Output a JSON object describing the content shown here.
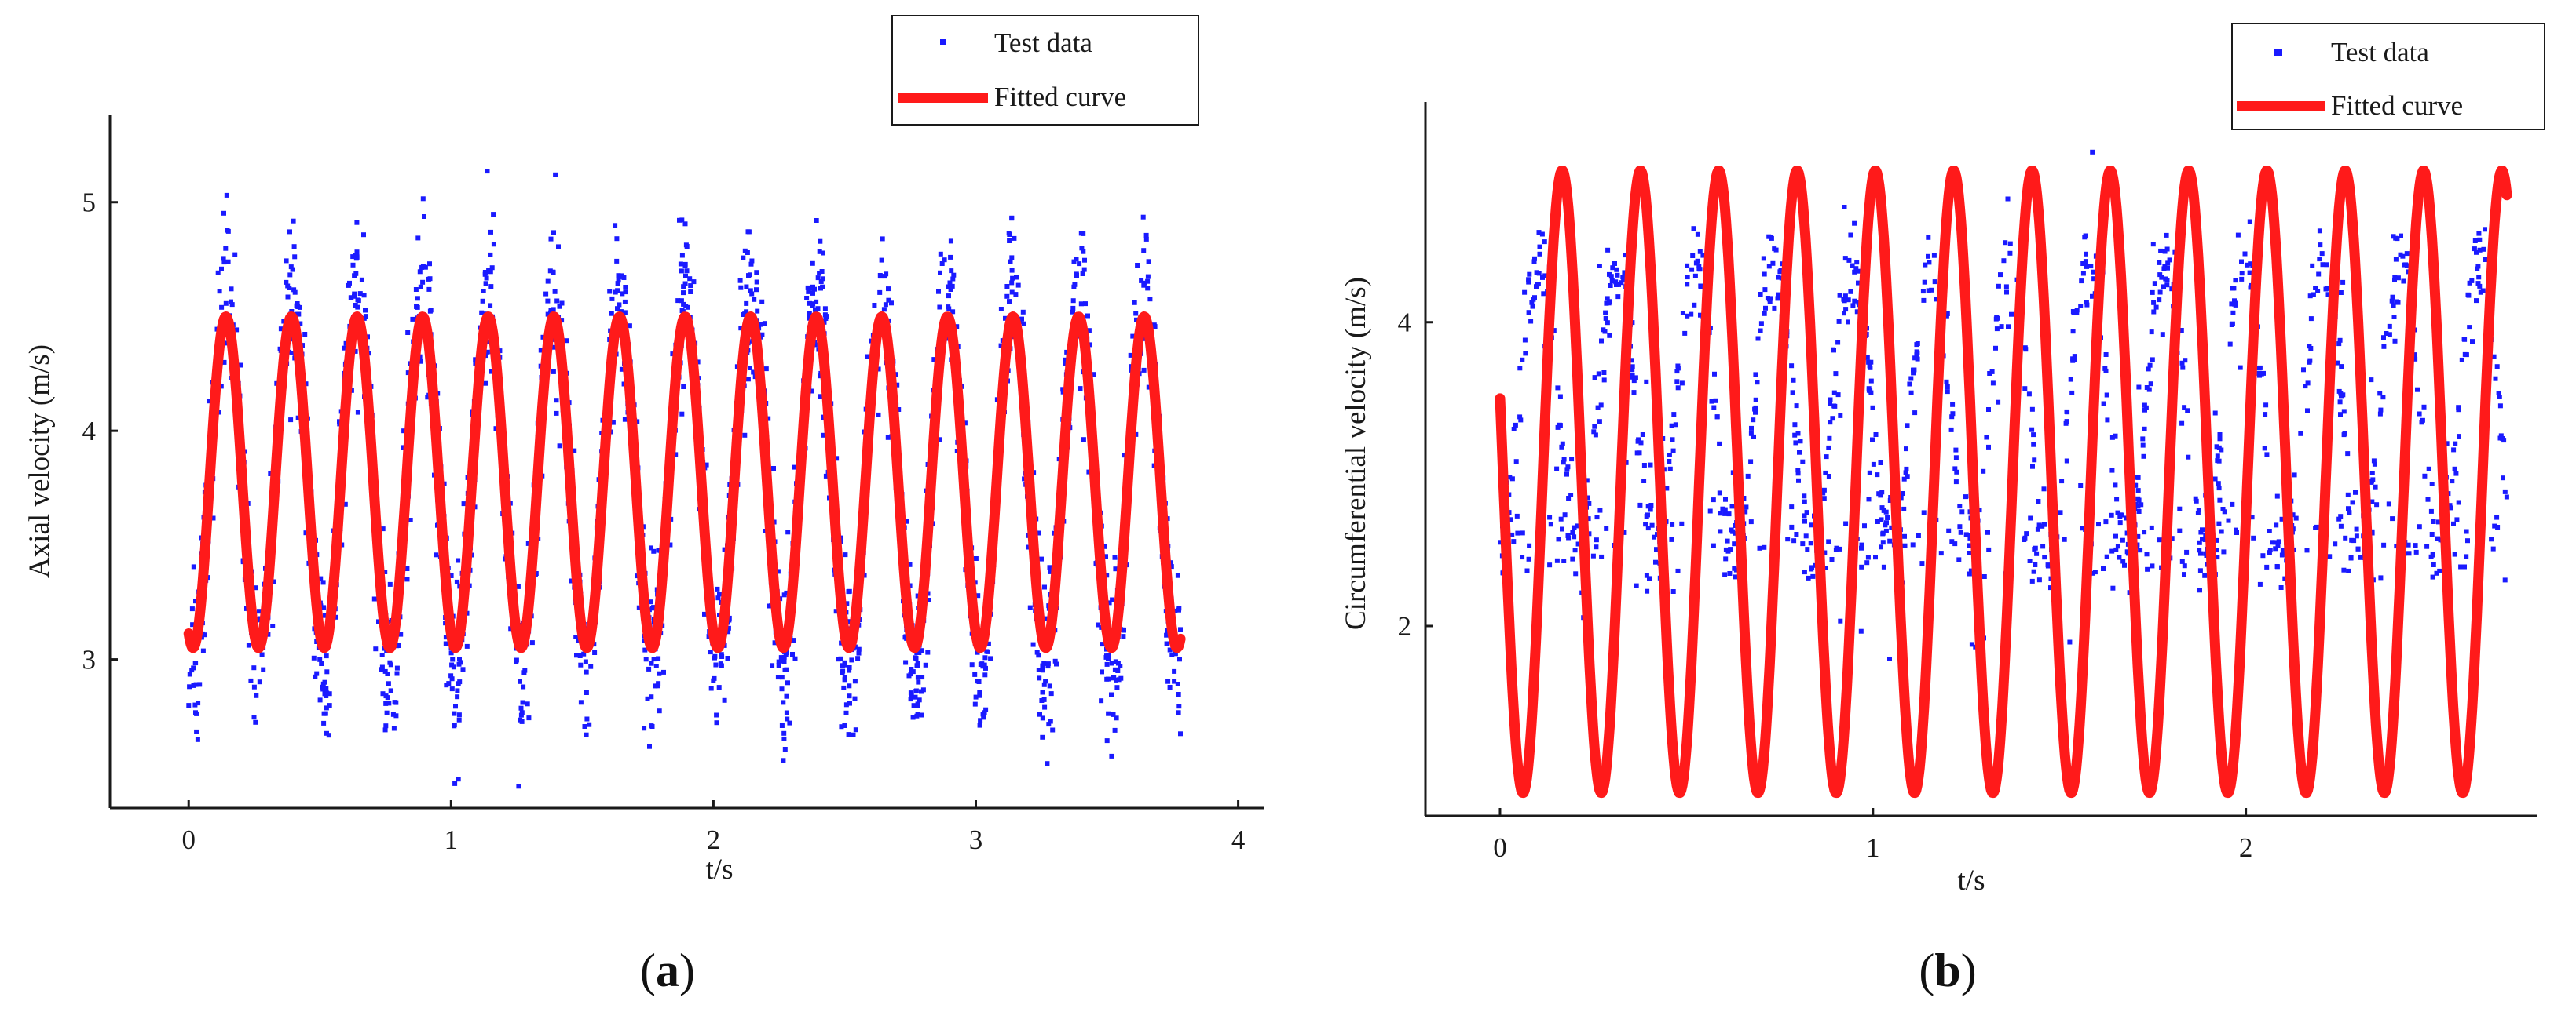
{
  "colors": {
    "scatter": "#1a1aff",
    "fit": "#ff1a1a",
    "axis": "#1a1a1a"
  },
  "chart_data": [
    {
      "type": "scatter",
      "panel_label": "(a)",
      "panel_letter": "a",
      "xlabel": "t/s",
      "ylabel": "Axial velocity (m/s)",
      "xlim": [
        -0.3,
        4.1
      ],
      "ylim": [
        2.35,
        5.38
      ],
      "xticks": [
        0,
        1,
        2,
        3,
        4
      ],
      "yticks": [
        3,
        4,
        5
      ],
      "series": [
        {
          "name": "Test data",
          "kind": "scatter",
          "t_range": [
            0,
            3.78
          ],
          "n_points": 2400,
          "period": 0.25,
          "mean": 3.78,
          "amplitude": 0.82,
          "noise": 0.38,
          "phase": 2.72
        },
        {
          "name": "Fitted curve",
          "kind": "line",
          "t_range": [
            0,
            3.78
          ],
          "period": 0.25,
          "mean": 3.775,
          "amplitude": 0.725,
          "phase": 2.72
        }
      ],
      "legend": [
        "Test data",
        "Fitted curve"
      ],
      "legend_location": "top-right"
    },
    {
      "type": "scatter",
      "panel_label": "(b)",
      "panel_letter": "b",
      "xlabel": "t/s",
      "ylabel": "Circumferential velocity (m/s)",
      "xlim": [
        -0.2,
        2.78
      ],
      "ylim": [
        0.75,
        5.45
      ],
      "xticks": [
        0,
        1,
        2
      ],
      "yticks": [
        2,
        4
      ],
      "series": [
        {
          "name": "Test data",
          "kind": "scatter",
          "t_range": [
            0,
            2.7
          ],
          "n_points": 1300,
          "period": 0.21,
          "low": 2.55,
          "high": 4.4,
          "noise": 0.28
        },
        {
          "name": "Fitted curve",
          "kind": "line",
          "t_range": [
            0,
            2.7
          ],
          "period": 0.21,
          "mean": 2.95,
          "amplitude": 2.05,
          "phase": 1.3
        }
      ],
      "legend": [
        "Test data",
        "Fitted curve"
      ],
      "legend_location": "top-right"
    }
  ]
}
